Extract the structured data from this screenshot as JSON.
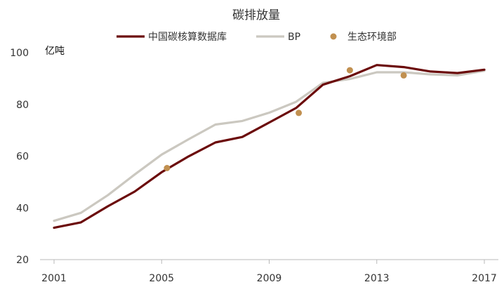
{
  "chart_data": {
    "type": "line",
    "title": "碳排放量",
    "ylabel": "亿吨",
    "xlabel": "",
    "xlim": [
      2000.7,
      2017.5
    ],
    "ylim": [
      20,
      100
    ],
    "xticks": [
      2001,
      2005,
      2009,
      2013,
      2017
    ],
    "yticks": [
      20,
      40,
      60,
      80,
      100
    ],
    "xtick_labels": [
      "2001",
      "2005",
      "2009",
      "2013",
      "2017"
    ],
    "ytick_labels": [
      "20",
      "40",
      "60",
      "80",
      "100"
    ],
    "grid": false,
    "legend_position": "top",
    "series": [
      {
        "name": "中国碳核算数据库",
        "kind": "line",
        "color": "#6b0a0a",
        "x": [
          2001,
          2002,
          2003,
          2004,
          2005,
          2006,
          2007,
          2008,
          2009,
          2010,
          2011,
          2012,
          2013,
          2014,
          2015,
          2016,
          2017
        ],
        "y": [
          32.3,
          34.4,
          40.6,
          46.3,
          53.8,
          59.9,
          65.3,
          67.4,
          73.0,
          78.6,
          87.6,
          90.9,
          95.2,
          94.4,
          92.7,
          92.1,
          93.4
        ]
      },
      {
        "name": "BP",
        "kind": "line",
        "color": "#cbc8c0",
        "x": [
          2001,
          2002,
          2003,
          2004,
          2005,
          2006,
          2007,
          2008,
          2009,
          2010,
          2011,
          2012,
          2013,
          2014,
          2015,
          2016,
          2017
        ],
        "y": [
          35.0,
          38.1,
          44.9,
          52.9,
          60.6,
          66.5,
          72.2,
          73.6,
          76.8,
          81.0,
          88.3,
          89.8,
          92.4,
          92.4,
          91.6,
          91.2,
          93.0
        ]
      },
      {
        "name": "生态环境部",
        "kind": "scatter",
        "color": "#c19050",
        "x": [
          2005.2,
          2010.1,
          2012.0,
          2014.0
        ],
        "y": [
          55.4,
          76.7,
          93.2,
          91.2
        ]
      }
    ]
  }
}
